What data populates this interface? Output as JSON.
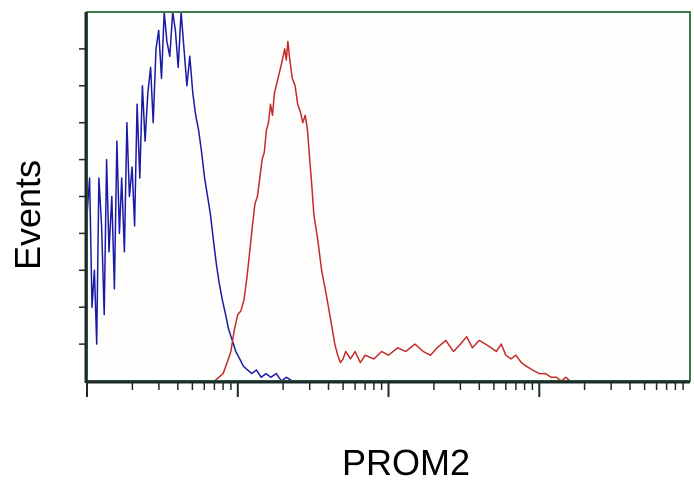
{
  "chart_data": {
    "type": "line",
    "title": "",
    "xlabel": "PROM2",
    "ylabel": "Events",
    "x_scale": "log",
    "xlim": [
      1,
      10000
    ],
    "ylim": [
      0,
      100
    ],
    "grid": false,
    "legend": "none",
    "plot_background": "#fefefc",
    "frame_color": "#3d7a4a",
    "axis_color": "#1c2a2a",
    "series": [
      {
        "color": "#1a1aa8",
        "x": [
          1.0,
          1.04,
          1.08,
          1.12,
          1.16,
          1.2,
          1.25,
          1.3,
          1.35,
          1.4,
          1.46,
          1.52,
          1.58,
          1.64,
          1.7,
          1.77,
          1.84,
          1.91,
          1.99,
          2.07,
          2.15,
          2.24,
          2.33,
          2.43,
          2.53,
          2.64,
          2.75,
          2.87,
          2.99,
          3.12,
          3.25,
          3.39,
          3.54,
          3.7,
          3.86,
          4.03,
          4.21,
          4.4,
          4.6,
          4.81,
          5.03,
          5.26,
          5.5,
          5.76,
          6.03,
          6.31,
          6.6,
          6.9,
          7.2,
          7.5,
          7.9,
          8.3,
          8.7,
          9.2,
          9.7,
          10.3,
          10.9,
          11.6,
          12.4,
          13.3,
          14.3,
          15.4,
          16.6,
          18,
          19.5,
          21,
          23
        ],
        "y": [
          45,
          55,
          20,
          30,
          10,
          55,
          42,
          18,
          60,
          35,
          50,
          25,
          65,
          40,
          55,
          35,
          70,
          50,
          58,
          42,
          75,
          55,
          80,
          65,
          78,
          85,
          70,
          90,
          95,
          82,
          100,
          92,
          88,
          100,
          95,
          85,
          100,
          90,
          80,
          88,
          78,
          72,
          68,
          62,
          55,
          50,
          45,
          38,
          32,
          27,
          22,
          18,
          14,
          11,
          8,
          6,
          4,
          3,
          2,
          3,
          1,
          2,
          1,
          2,
          0,
          1,
          0
        ]
      },
      {
        "color": "#c42a2a",
        "x": [
          7,
          7.5,
          8,
          8.5,
          9,
          9.5,
          10,
          10.5,
          11,
          11.5,
          12,
          12.5,
          13,
          13.5,
          14,
          14.5,
          15,
          15.5,
          16,
          16.5,
          17,
          17.5,
          18,
          18.5,
          19,
          19.5,
          20,
          20.5,
          21,
          21.5,
          22,
          22.5,
          23,
          24,
          25,
          26,
          27,
          28,
          29,
          30,
          31,
          32,
          34,
          36,
          38,
          40,
          42,
          44,
          46,
          48,
          50,
          52,
          54,
          56,
          60,
          65,
          70,
          80,
          90,
          100,
          115,
          130,
          150,
          170,
          190,
          210,
          240,
          270,
          300,
          330,
          360,
          400,
          440,
          480,
          520,
          560,
          600,
          650,
          700,
          760,
          820,
          900,
          1000,
          1100,
          1200,
          1300,
          1400,
          1500,
          1600
        ],
        "y": [
          0,
          1,
          2,
          5,
          8,
          14,
          18,
          19,
          22,
          28,
          35,
          42,
          48,
          50,
          55,
          60,
          62,
          68,
          70,
          75,
          72,
          78,
          80,
          82,
          84,
          86,
          88,
          90,
          87,
          92,
          88,
          85,
          82,
          80,
          75,
          73,
          70,
          72,
          68,
          60,
          53,
          45,
          38,
          30,
          25,
          20,
          15,
          10,
          7,
          5,
          6,
          8,
          7,
          6,
          8,
          5,
          7,
          6,
          8,
          7,
          9,
          8,
          10,
          8,
          7,
          9,
          11,
          8,
          10,
          12,
          9,
          11,
          10,
          9,
          8,
          10,
          7,
          6,
          7,
          5,
          4,
          3,
          2,
          2,
          1,
          1,
          0,
          1,
          0
        ]
      }
    ]
  }
}
